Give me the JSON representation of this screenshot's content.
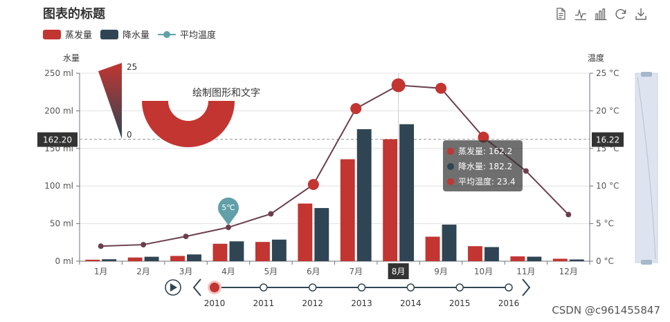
{
  "title": "图表的标题",
  "legend": {
    "items": [
      {
        "label": "蒸发量",
        "color": "#c23531"
      },
      {
        "label": "降水量",
        "color": "#2f4554"
      },
      {
        "label": "平均温度",
        "color": "#61a0a8"
      }
    ]
  },
  "toolbox": [
    "data-view-icon",
    "line-chart-icon",
    "bar-chart-icon",
    "restore-icon",
    "save-image-icon"
  ],
  "watermark": "CSDN @c961455847",
  "chart_data": {
    "type": "bar",
    "categories": [
      "1月",
      "2月",
      "3月",
      "4月",
      "5月",
      "6月",
      "7月",
      "8月",
      "9月",
      "10月",
      "11月",
      "12月"
    ],
    "series": [
      {
        "name": "蒸发量",
        "type": "bar",
        "color": "#c23531",
        "values": [
          2.0,
          4.9,
          7.0,
          23.2,
          25.6,
          76.7,
          135.6,
          162.2,
          32.6,
          20.0,
          6.4,
          3.3
        ]
      },
      {
        "name": "降水量",
        "type": "bar",
        "color": "#2f4554",
        "values": [
          2.6,
          5.9,
          9.0,
          26.4,
          28.7,
          70.7,
          175.6,
          182.2,
          48.7,
          18.8,
          6.0,
          2.3
        ]
      },
      {
        "name": "平均温度",
        "type": "line",
        "axis": "right",
        "color": "#61a0a8",
        "values": [
          2.0,
          2.2,
          3.3,
          4.5,
          6.3,
          10.2,
          20.3,
          23.4,
          23.0,
          16.5,
          12.0,
          6.2
        ]
      }
    ],
    "y_left": {
      "name": "水量",
      "min": 0,
      "max": 250,
      "ticks": [
        "0 ml",
        "50 ml",
        "100 ml",
        "150 ml",
        "200 ml",
        "250 ml"
      ]
    },
    "y_right": {
      "name": "温度",
      "min": 0,
      "max": 25,
      "ticks": [
        "0 °C",
        "5 °C",
        "10 °C",
        "15 °C",
        "20 °C",
        "25 °C"
      ]
    },
    "axis_pointer": {
      "category": "8月",
      "left_label": "162.20",
      "right_label": "16.22"
    },
    "tooltip": {
      "lines": [
        "蒸发量: 162.2",
        "降水量: 182.2",
        "平均温度: 23.4"
      ]
    },
    "mark_point": {
      "category": "4月",
      "label": "5℃"
    },
    "graphic_text": "绘制图形和文字",
    "visual_map": {
      "max_label": "25",
      "min_label": "0"
    },
    "timeline": {
      "years": [
        "2010",
        "2011",
        "2012",
        "2013",
        "2014",
        "2015",
        "2016"
      ],
      "current": "2010"
    },
    "data_zoom": {
      "start": 0,
      "end": 100
    }
  }
}
